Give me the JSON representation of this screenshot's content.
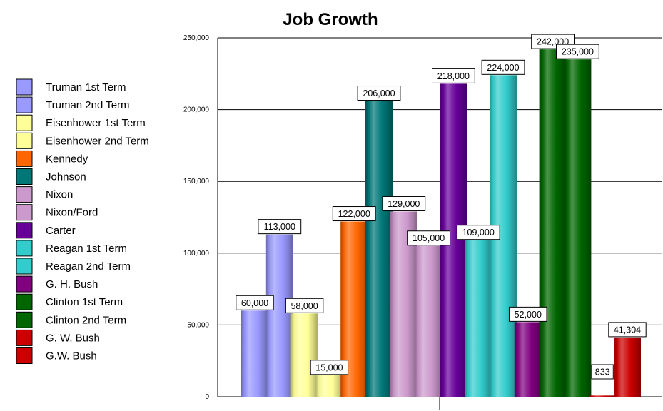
{
  "chart_data": {
    "type": "bar",
    "title": "Job Growth",
    "xlabel": "",
    "ylabel": "",
    "ylim": [
      0,
      250000
    ],
    "yticks": [
      0,
      50000,
      100000,
      150000,
      200000,
      250000
    ],
    "ytick_labels": [
      "0",
      "50,000",
      "100,000",
      "150,000",
      "200,000",
      "250,000"
    ],
    "grid": true,
    "legend_position": "left",
    "series": [
      {
        "name": "Truman 1st Term",
        "value": 60000,
        "label": "60,000",
        "color": "#9999ff"
      },
      {
        "name": "Truman 2nd Term",
        "value": 113000,
        "label": "113,000",
        "color": "#9999ff"
      },
      {
        "name": "Eisenhower 1st Term",
        "value": 58000,
        "label": "58,000",
        "color": "#ffff99"
      },
      {
        "name": "Eisenhower 2nd Term",
        "value": 15000,
        "label": "15,000",
        "color": "#ffff99"
      },
      {
        "name": "Kennedy",
        "value": 122000,
        "label": "122,000",
        "color": "#ff6600"
      },
      {
        "name": "Johnson",
        "value": 206000,
        "label": "206,000",
        "color": "#007777"
      },
      {
        "name": "Nixon",
        "value": 129000,
        "label": "129,000",
        "color": "#cc99cc"
      },
      {
        "name": "Nixon/Ford",
        "value": 105000,
        "label": "105,000",
        "color": "#cc99cc"
      },
      {
        "name": "Carter",
        "value": 218000,
        "label": "218,000",
        "color": "#660099"
      },
      {
        "name": "Reagan 1st Term",
        "value": 109000,
        "label": "109,000",
        "color": "#33cccc"
      },
      {
        "name": "Reagan 2nd Term",
        "value": 224000,
        "label": "224,000",
        "color": "#33cccc"
      },
      {
        "name": "G. H. Bush",
        "value": 52000,
        "label": "52,000",
        "color": "#800080"
      },
      {
        "name": "Clinton 1st Term",
        "value": 242000,
        "label": "242,000",
        "color": "#006600"
      },
      {
        "name": "Clinton 2nd Term",
        "value": 235000,
        "label": "235,000",
        "color": "#006600"
      },
      {
        "name": "G. W. Bush",
        "value": 833,
        "label": "833",
        "color": "#cc0000"
      },
      {
        "name": "G.W. Bush",
        "value": 41304,
        "label": "41,304",
        "color": "#cc0000"
      }
    ]
  }
}
